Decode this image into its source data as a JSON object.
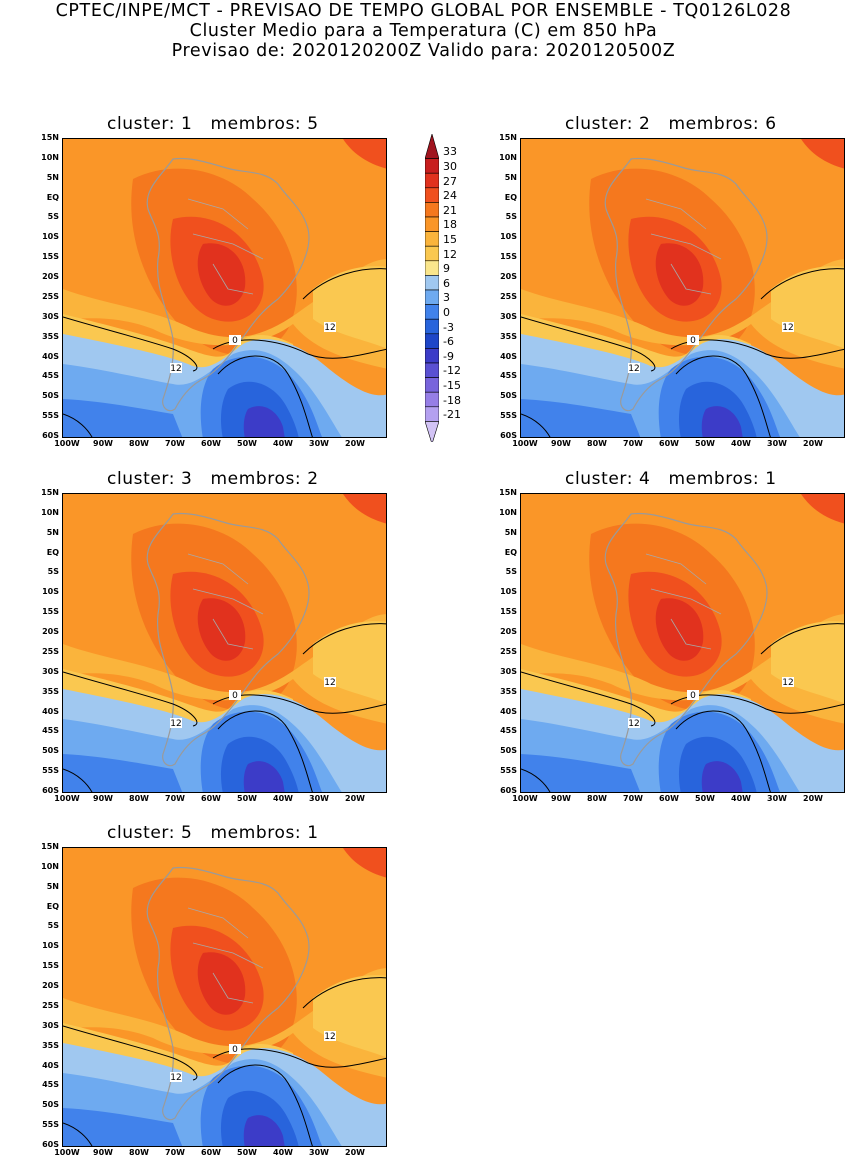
{
  "header": {
    "line1": "CPTEC/INPE/MCT - PREVISAO DE TEMPO GLOBAL POR ENSEMBLE - TQ0126L028",
    "line2": "Cluster Medio para a Temperatura (C) em 850 hPa",
    "line3": "Previsao de: 2020120200Z   Valido para: 2020120500Z"
  },
  "panels": [
    {
      "title": "cluster: 1   membros: 5",
      "warm": 1.0,
      "contour12_south": 1
    },
    {
      "title": "cluster: 2   membros: 6",
      "warm": 0.95,
      "contour12_south": 1
    },
    {
      "title": "cluster: 3   membros: 2",
      "warm": 0.9,
      "contour12_south": 1
    },
    {
      "title": "cluster: 4   membros: 1",
      "warm": 1.05,
      "contour12_south": 1
    },
    {
      "title": "cluster: 5   membros: 1",
      "warm": 0.8,
      "contour12_south": 1
    }
  ],
  "lat_labels": [
    "15N",
    "10N",
    "5N",
    "EQ",
    "5S",
    "10S",
    "15S",
    "20S",
    "25S",
    "30S",
    "35S",
    "40S",
    "45S",
    "50S",
    "55S",
    "60S"
  ],
  "lon_labels": [
    "100W",
    "90W",
    "80W",
    "70W",
    "60W",
    "50W",
    "40W",
    "30W",
    "20W"
  ],
  "contour_labels": [
    "0",
    "12"
  ],
  "colorbar": {
    "levels": [
      "33",
      "30",
      "27",
      "24",
      "21",
      "18",
      "15",
      "12",
      "9",
      "6",
      "3",
      "0",
      "-3",
      "-6",
      "-9",
      "-12",
      "-15",
      "-18",
      "-21"
    ],
    "colors": [
      "#a0141e",
      "#c81e1e",
      "#e1321e",
      "#f0501e",
      "#f5781e",
      "#fa9628",
      "#fab43c",
      "#fac850",
      "#fae68c",
      "#a0c8f0",
      "#6eaaf0",
      "#4182eb",
      "#2864dc",
      "#1e46c8",
      "#3c3cc8",
      "#5a50d2",
      "#7864dc",
      "#967ee6",
      "#b4a0f0",
      "#d2c3f5"
    ]
  }
}
